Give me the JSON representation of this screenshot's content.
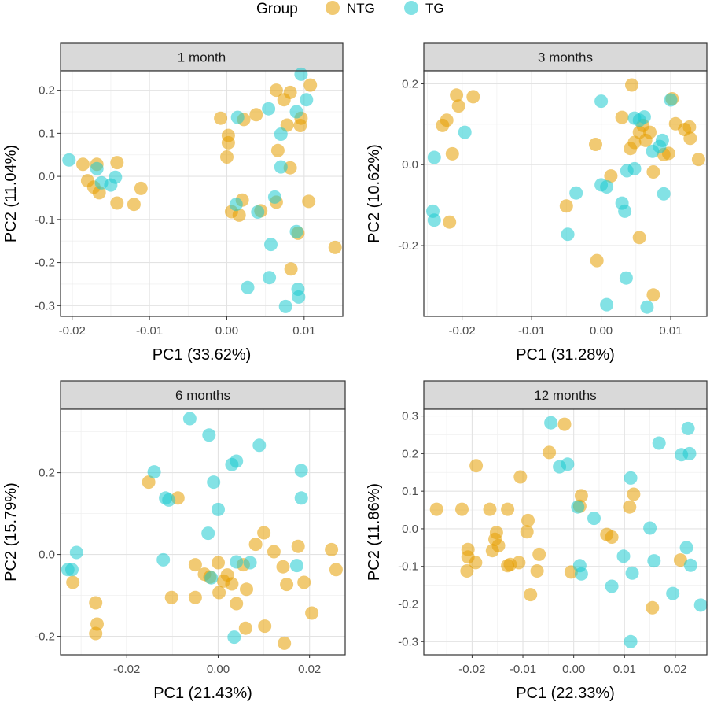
{
  "legend": {
    "title": "Group",
    "entries": [
      {
        "name": "NTG",
        "color": "#E69F00"
      },
      {
        "name": "TG",
        "color": "#1ECBD0"
      }
    ]
  },
  "chart_data": [
    {
      "type": "scatter",
      "title": "1 month",
      "xlabel": "PC1 (33.62%)",
      "ylabel": "PC2 (11.04%)",
      "xlim": [
        -0.0215,
        0.015
      ],
      "ylim": [
        -0.325,
        0.245
      ],
      "xticks": [
        -0.02,
        -0.01,
        0.0,
        0.01
      ],
      "xtick_labels": [
        "-0.02",
        "-0.01",
        "0.00",
        "0.01"
      ],
      "yticks": [
        -0.3,
        -0.2,
        -0.1,
        0.0,
        0.1,
        0.2
      ],
      "ytick_labels": [
        "-0.3",
        "-0.2",
        "-0.1",
        "0.0",
        "0.1",
        "0.2"
      ],
      "grid": true,
      "series": [
        {
          "name": "NTG",
          "points": [
            [
              -0.0186,
              0.028
            ],
            [
              -0.0168,
              0.028
            ],
            [
              -0.0142,
              0.032
            ],
            [
              -0.018,
              -0.01
            ],
            [
              -0.0172,
              -0.025
            ],
            [
              -0.0165,
              -0.038
            ],
            [
              -0.0111,
              -0.028
            ],
            [
              -0.0142,
              -0.062
            ],
            [
              -0.012,
              -0.065
            ],
            [
              -0.0008,
              0.135
            ],
            [
              0.0002,
              0.095
            ],
            [
              0.0002,
              0.078
            ],
            [
              0.0,
              0.045
            ],
            [
              0.0022,
              0.132
            ],
            [
              0.0038,
              0.143
            ],
            [
              0.0064,
              0.2
            ],
            [
              0.0082,
              0.195
            ],
            [
              0.0108,
              0.212
            ],
            [
              0.0074,
              0.178
            ],
            [
              0.0096,
              0.135
            ],
            [
              0.0078,
              0.119
            ],
            [
              0.0095,
              0.118
            ],
            [
              0.0066,
              0.06
            ],
            [
              0.0082,
              0.02
            ],
            [
              0.002,
              -0.055
            ],
            [
              0.0006,
              -0.082
            ],
            [
              0.0016,
              -0.09
            ],
            [
              0.0044,
              -0.08
            ],
            [
              0.0064,
              -0.06
            ],
            [
              0.0106,
              -0.058
            ],
            [
              0.0092,
              -0.132
            ],
            [
              0.0083,
              -0.215
            ],
            [
              0.014,
              -0.165
            ]
          ]
        },
        {
          "name": "TG",
          "points": [
            [
              -0.0204,
              0.038
            ],
            [
              -0.0168,
              0.018
            ],
            [
              -0.0162,
              -0.015
            ],
            [
              -0.015,
              -0.02
            ],
            [
              -0.0144,
              -0.002
            ],
            [
              0.0014,
              0.137
            ],
            [
              0.0054,
              0.157
            ],
            [
              0.009,
              0.15
            ],
            [
              0.0096,
              0.237
            ],
            [
              0.0103,
              0.178
            ],
            [
              0.007,
              0.098
            ],
            [
              0.007,
              0.022
            ],
            [
              0.0062,
              -0.048
            ],
            [
              0.004,
              -0.083
            ],
            [
              0.009,
              -0.128
            ],
            [
              0.0057,
              -0.158
            ],
            [
              0.0092,
              -0.262
            ],
            [
              0.0055,
              -0.235
            ],
            [
              0.0093,
              -0.28
            ],
            [
              0.0027,
              -0.258
            ],
            [
              0.0076,
              -0.302
            ],
            [
              0.0012,
              -0.065
            ]
          ]
        }
      ]
    },
    {
      "type": "scatter",
      "title": "3 months",
      "xlabel": "PC1 (31.28%)",
      "ylabel": "PC2 (10.62%)",
      "xlim": [
        -0.0255,
        0.0152
      ],
      "ylim": [
        -0.375,
        0.232
      ],
      "xticks": [
        -0.02,
        -0.01,
        0.0,
        0.01
      ],
      "xtick_labels": [
        "-0.02",
        "-0.01",
        "0.00",
        "0.01"
      ],
      "yticks": [
        -0.2,
        0.0,
        0.2
      ],
      "ytick_labels": [
        "-0.2",
        "0.0",
        "0.2"
      ],
      "grid": true,
      "series": [
        {
          "name": "NTG",
          "points": [
            [
              -0.0208,
              0.172
            ],
            [
              -0.0205,
              0.145
            ],
            [
              -0.0184,
              0.168
            ],
            [
              -0.0228,
              0.097
            ],
            [
              -0.0222,
              0.11
            ],
            [
              -0.0214,
              0.027
            ],
            [
              -0.0218,
              -0.142
            ],
            [
              -0.005,
              -0.102
            ],
            [
              -0.0008,
              0.05
            ],
            [
              0.0014,
              -0.028
            ],
            [
              0.0044,
              0.197
            ],
            [
              0.003,
              0.117
            ],
            [
              0.0055,
              0.08
            ],
            [
              0.006,
              0.097
            ],
            [
              0.007,
              0.08
            ],
            [
              0.0048,
              0.055
            ],
            [
              0.0042,
              0.04
            ],
            [
              0.0075,
              -0.018
            ],
            [
              0.0102,
              0.163
            ],
            [
              0.0107,
              0.101
            ],
            [
              0.0127,
              0.093
            ],
            [
              0.014,
              0.013
            ],
            [
              0.0128,
              0.065
            ],
            [
              0.009,
              0.025
            ],
            [
              0.0097,
              0.028
            ],
            [
              0.0064,
              0.06
            ],
            [
              0.0055,
              -0.18
            ],
            [
              -0.0006,
              -0.237
            ],
            [
              0.0075,
              -0.322
            ],
            [
              0.012,
              0.087
            ]
          ]
        },
        {
          "name": "TG",
          "points": [
            [
              -0.024,
              0.018
            ],
            [
              -0.0196,
              0.08
            ],
            [
              -0.0242,
              -0.115
            ],
            [
              -0.024,
              -0.137
            ],
            [
              -0.0048,
              -0.172
            ],
            [
              -0.0036,
              -0.07
            ],
            [
              0.0,
              0.157
            ],
            [
              0.0,
              -0.05
            ],
            [
              0.0008,
              -0.055
            ],
            [
              0.0048,
              0.115
            ],
            [
              0.0062,
              0.118
            ],
            [
              0.0055,
              0.11
            ],
            [
              0.0074,
              0.033
            ],
            [
              0.0084,
              0.045
            ],
            [
              0.0088,
              0.06
            ],
            [
              0.0037,
              -0.015
            ],
            [
              0.0048,
              -0.01
            ],
            [
              0.009,
              -0.072
            ],
            [
              0.003,
              -0.095
            ],
            [
              0.0034,
              -0.115
            ],
            [
              0.0036,
              -0.28
            ],
            [
              0.0008,
              -0.346
            ],
            [
              0.0066,
              -0.352
            ],
            [
              0.01,
              0.16
            ]
          ]
        }
      ]
    },
    {
      "type": "scatter",
      "title": "6 months",
      "xlabel": "PC1 (21.43%)",
      "ylabel": "PC2 (15.79%)",
      "xlim": [
        -0.0345,
        0.0278
      ],
      "ylim": [
        -0.245,
        0.355
      ],
      "xticks": [
        -0.02,
        0.0,
        0.02
      ],
      "xtick_labels": [
        "-0.02",
        "0.00",
        "0.02"
      ],
      "yticks": [
        -0.2,
        0.0,
        0.2
      ],
      "ytick_labels": [
        "-0.2",
        "0.0",
        "0.2"
      ],
      "grid": true,
      "series": [
        {
          "name": "NTG",
          "points": [
            [
              -0.0318,
              -0.068
            ],
            [
              -0.0268,
              -0.118
            ],
            [
              -0.0265,
              -0.17
            ],
            [
              -0.0268,
              -0.193
            ],
            [
              -0.0152,
              0.177
            ],
            [
              -0.0088,
              0.138
            ],
            [
              -0.0102,
              -0.105
            ],
            [
              -0.005,
              -0.025
            ],
            [
              -0.005,
              -0.105
            ],
            [
              -0.003,
              -0.048
            ],
            [
              -0.0018,
              -0.055
            ],
            [
              0.0,
              -0.02
            ],
            [
              0.0002,
              -0.093
            ],
            [
              0.002,
              -0.05
            ],
            [
              0.003,
              -0.072
            ],
            [
              0.004,
              -0.12
            ],
            [
              0.0062,
              -0.085
            ],
            [
              0.006,
              -0.18
            ],
            [
              0.0082,
              0.025
            ],
            [
              0.01,
              0.053
            ],
            [
              0.0122,
              0.007
            ],
            [
              0.0102,
              -0.175
            ],
            [
              0.0142,
              -0.03
            ],
            [
              0.0145,
              -0.217
            ],
            [
              0.015,
              -0.073
            ],
            [
              0.0175,
              0.02
            ],
            [
              0.0188,
              -0.068
            ],
            [
              0.0205,
              -0.143
            ],
            [
              0.0248,
              0.012
            ],
            [
              0.0258,
              -0.037
            ],
            [
              0.0012,
              -0.065
            ],
            [
              0.0055,
              -0.025
            ]
          ]
        },
        {
          "name": "TG",
          "points": [
            [
              -0.0329,
              -0.037
            ],
            [
              -0.032,
              -0.037
            ],
            [
              -0.031,
              0.005
            ],
            [
              -0.014,
              0.202
            ],
            [
              -0.0115,
              0.138
            ],
            [
              -0.0108,
              0.133
            ],
            [
              -0.012,
              -0.013
            ],
            [
              -0.0062,
              0.332
            ],
            [
              -0.002,
              0.292
            ],
            [
              -0.001,
              0.177
            ],
            [
              0.0,
              0.11
            ],
            [
              -0.0022,
              0.052
            ],
            [
              -0.0015,
              -0.057
            ],
            [
              0.003,
              0.22
            ],
            [
              0.004,
              0.228
            ],
            [
              0.009,
              0.267
            ],
            [
              0.0182,
              0.205
            ],
            [
              0.0182,
              0.138
            ],
            [
              0.0172,
              -0.027
            ],
            [
              0.004,
              -0.018
            ],
            [
              0.007,
              -0.02
            ],
            [
              0.0035,
              -0.202
            ]
          ]
        }
      ]
    },
    {
      "type": "scatter",
      "title": "12 months",
      "xlabel": "PC1 (22.33%)",
      "ylabel": "PC2 (11.86%)",
      "xlim": [
        -0.0295,
        0.0262
      ],
      "ylim": [
        -0.335,
        0.318
      ],
      "xticks": [
        -0.02,
        -0.01,
        0.0,
        0.01,
        0.02
      ],
      "xtick_labels": [
        "-0.02",
        "-0.01",
        "0.00",
        "0.01",
        "0.02"
      ],
      "yticks": [
        -0.3,
        -0.2,
        -0.1,
        0.0,
        0.1,
        0.2,
        0.3
      ],
      "ytick_labels": [
        "-0.3",
        "-0.2",
        "-0.1",
        "0.0",
        "0.1",
        "0.2",
        "0.3"
      ],
      "grid": true,
      "series": [
        {
          "name": "NTG",
          "points": [
            [
              -0.027,
              0.052
            ],
            [
              -0.022,
              0.052
            ],
            [
              -0.0192,
              0.168
            ],
            [
              -0.0165,
              0.052
            ],
            [
              -0.013,
              0.052
            ],
            [
              -0.0152,
              -0.01
            ],
            [
              -0.0155,
              -0.028
            ],
            [
              -0.0148,
              -0.045
            ],
            [
              -0.016,
              -0.058
            ],
            [
              -0.013,
              -0.098
            ],
            [
              -0.0125,
              -0.095
            ],
            [
              -0.0208,
              -0.055
            ],
            [
              -0.0208,
              -0.075
            ],
            [
              -0.021,
              -0.112
            ],
            [
              -0.0193,
              -0.09
            ],
            [
              -0.0108,
              -0.09
            ],
            [
              -0.0105,
              0.138
            ],
            [
              -0.009,
              0.022
            ],
            [
              -0.0092,
              -0.008
            ],
            [
              -0.0085,
              -0.175
            ],
            [
              -0.0072,
              -0.112
            ],
            [
              -0.0068,
              -0.068
            ],
            [
              -0.0048,
              0.203
            ],
            [
              -0.0018,
              0.278
            ],
            [
              -0.0005,
              -0.115
            ],
            [
              0.0015,
              0.088
            ],
            [
              0.0012,
              0.06
            ],
            [
              0.0065,
              -0.015
            ],
            [
              0.0075,
              -0.022
            ],
            [
              0.011,
              0.058
            ],
            [
              0.0118,
              0.092
            ],
            [
              0.0155,
              -0.21
            ],
            [
              0.021,
              -0.083
            ]
          ]
        },
        {
          "name": "TG",
          "points": [
            [
              -0.0045,
              0.282
            ],
            [
              -0.0028,
              0.165
            ],
            [
              -0.0012,
              0.172
            ],
            [
              0.0012,
              -0.098
            ],
            [
              0.0015,
              -0.12
            ],
            [
              0.0008,
              0.058
            ],
            [
              0.004,
              0.028
            ],
            [
              0.0075,
              -0.153
            ],
            [
              0.0098,
              -0.073
            ],
            [
              0.0112,
              0.135
            ],
            [
              0.0115,
              -0.118
            ],
            [
              0.0112,
              -0.3
            ],
            [
              0.015,
              0.002
            ],
            [
              0.0158,
              -0.085
            ],
            [
              0.0168,
              0.228
            ],
            [
              0.0195,
              -0.172
            ],
            [
              0.0212,
              0.197
            ],
            [
              0.0225,
              0.267
            ],
            [
              0.0228,
              0.2
            ],
            [
              0.0222,
              -0.05
            ],
            [
              0.023,
              -0.097
            ],
            [
              0.025,
              -0.203
            ]
          ]
        }
      ]
    }
  ]
}
